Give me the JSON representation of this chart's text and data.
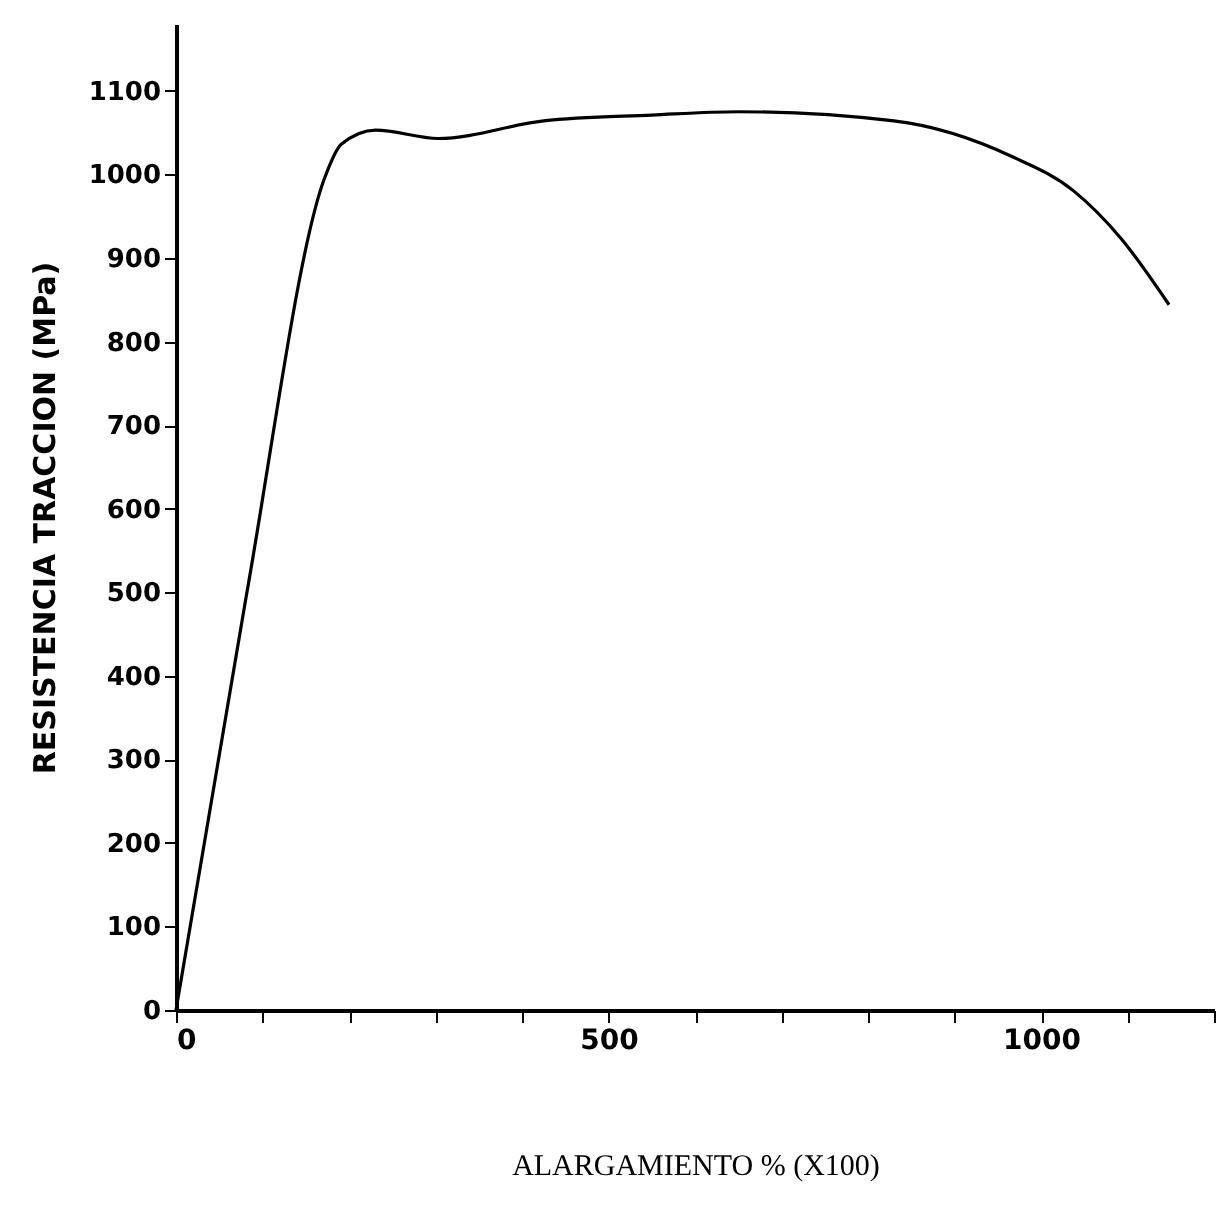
{
  "chart_data": {
    "type": "line",
    "xlabel": "ALARGAMIENTO % (X100)",
    "ylabel": "RESISTENCIA  TRACCION (MPa)",
    "x": [
      0,
      81,
      173,
      191,
      231,
      303,
      425,
      550,
      650,
      830,
      965,
      1038,
      1092,
      1148
    ],
    "series": [
      {
        "color": "#000000",
        "values": [
          0,
          494,
          999,
          1036,
          1053,
          1043,
          1064,
          1071,
          1075,
          1064,
          1022,
          980,
          924,
          844
        ]
      }
    ],
    "xlim": [
      0,
      1200
    ],
    "ylim": [
      0,
      1180
    ],
    "xticks": [
      0,
      {
        "value": 100,
        "label": null
      },
      {
        "value": 200,
        "label": null
      },
      {
        "value": 300,
        "label": null
      },
      {
        "value": 400,
        "label": null
      },
      500,
      {
        "value": 600,
        "label": null
      },
      {
        "value": 700,
        "label": null
      },
      {
        "value": 800,
        "label": null
      },
      {
        "value": 900,
        "label": null
      },
      1000,
      {
        "value": 1100,
        "label": null
      },
      {
        "value": 1200,
        "label": null
      }
    ],
    "yticks": [
      0,
      100,
      200,
      300,
      400,
      500,
      600,
      700,
      800,
      900,
      1000,
      1100
    ],
    "grid": false,
    "marker": "none",
    "line_style": "solid"
  }
}
